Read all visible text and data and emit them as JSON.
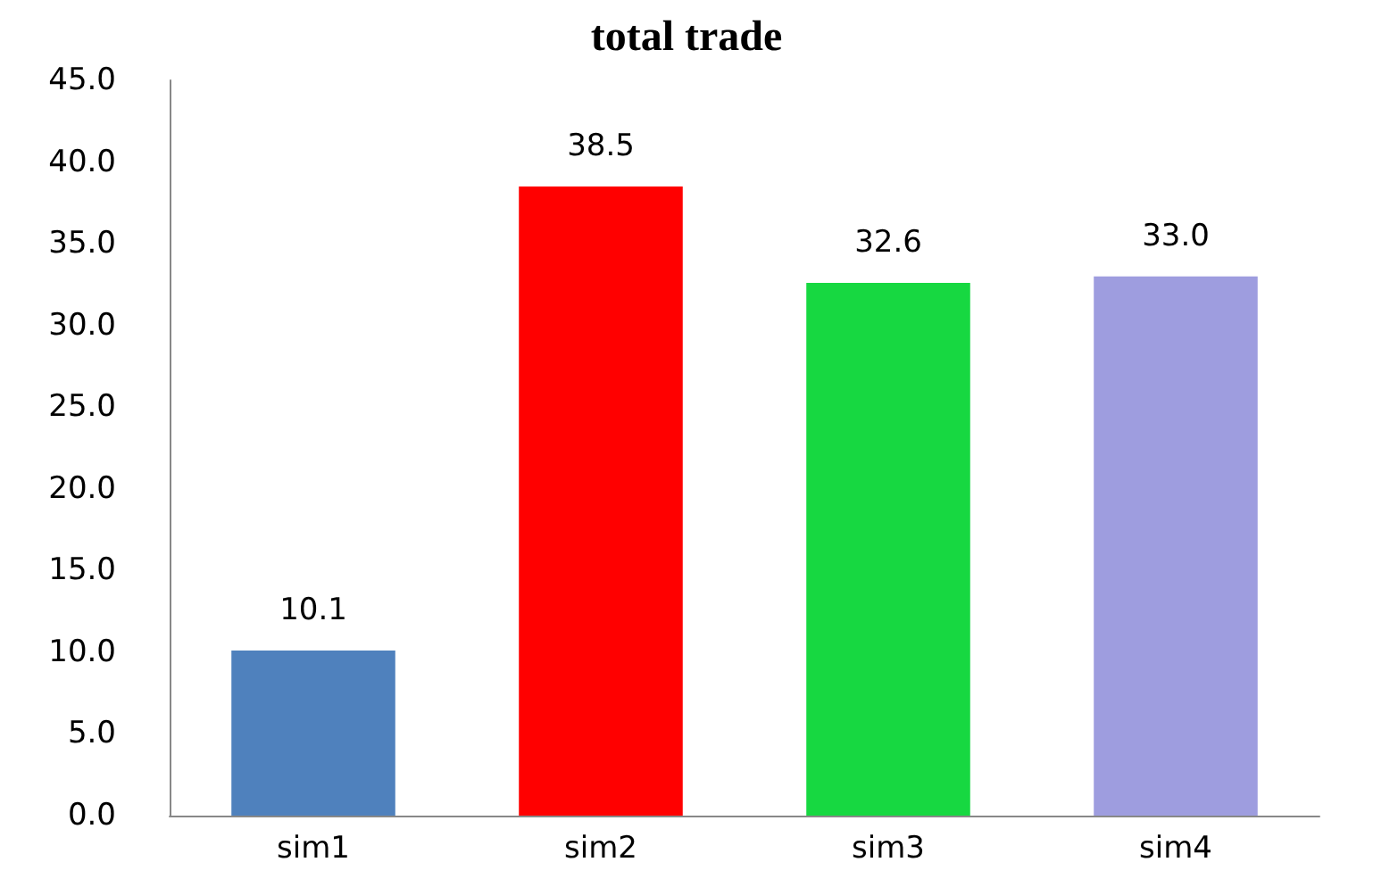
{
  "chart_data": {
    "type": "bar",
    "title": "total trade",
    "categories": [
      "sim1",
      "sim2",
      "sim3",
      "sim4"
    ],
    "values": [
      10.1,
      38.5,
      32.6,
      33.0
    ],
    "colors": [
      "#4f81bd",
      "#ff0000",
      "#17d841",
      "#9e9ddf"
    ],
    "value_labels": [
      "10.1",
      "38.5",
      "32.6",
      "33.0"
    ],
    "ylim": [
      0,
      45
    ],
    "yticks": [
      {
        "value": 0,
        "label": "0.0"
      },
      {
        "value": 5,
        "label": "5.0"
      },
      {
        "value": 10,
        "label": "10.0"
      },
      {
        "value": 15,
        "label": "15.0"
      },
      {
        "value": 20,
        "label": "20.0"
      },
      {
        "value": 25,
        "label": "25.0"
      },
      {
        "value": 30,
        "label": "30.0"
      },
      {
        "value": 35,
        "label": "35.0"
      },
      {
        "value": 40,
        "label": "40.0"
      },
      {
        "value": 45,
        "label": "45.0"
      }
    ],
    "grid": false
  }
}
